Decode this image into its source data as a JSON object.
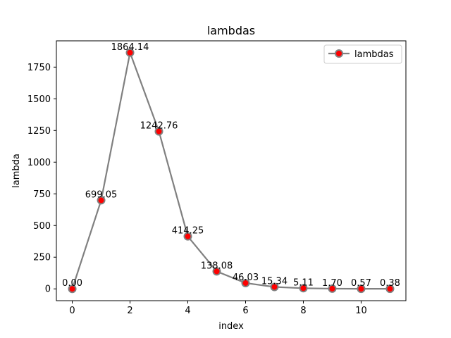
{
  "chart_data": {
    "type": "line",
    "title": "lambdas",
    "xlabel": "index",
    "ylabel": "lambda",
    "x": [
      0,
      1,
      2,
      3,
      4,
      5,
      6,
      7,
      8,
      9,
      10,
      11
    ],
    "series": [
      {
        "name": "lambdas",
        "values": [
          0.0,
          699.05,
          1864.14,
          1242.76,
          414.25,
          138.08,
          46.03,
          15.34,
          5.11,
          1.7,
          0.57,
          0.38
        ],
        "labels": [
          "0.00",
          "699.05",
          "1864.14",
          "1242.76",
          "414.25",
          "138.08",
          "46.03",
          "15.34",
          "5.11",
          "1.70",
          "0.57",
          "0.38"
        ]
      }
    ],
    "xlim": [
      -0.55,
      11.55
    ],
    "ylim": [
      -93.2,
      1957.35
    ],
    "xticks": [
      0,
      2,
      4,
      6,
      8,
      10
    ],
    "xtick_labels": [
      "0",
      "2",
      "4",
      "6",
      "8",
      "10"
    ],
    "yticks": [
      0,
      250,
      500,
      750,
      1000,
      1250,
      1500,
      1750
    ],
    "ytick_labels": [
      "0",
      "250",
      "500",
      "750",
      "1000",
      "1250",
      "1500",
      "1750"
    ],
    "grid": false,
    "legend_position": "top-right",
    "colors": {
      "line": "#808080",
      "marker_fill": "#ff0000",
      "marker_edge": "#808080"
    }
  }
}
